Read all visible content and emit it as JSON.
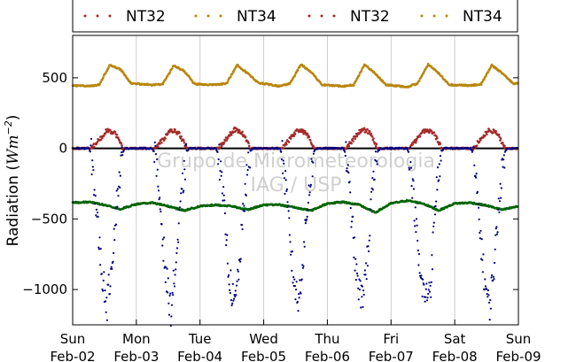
{
  "chart_data": {
    "type": "scatter",
    "title": "",
    "ylabel": "Radiation (Wm⁻²)",
    "ylabel_parts": {
      "prefix": "Radiation (",
      "unit_base": "Wm",
      "unit_exp": "−2",
      "suffix": ")"
    },
    "xlabel": "",
    "xlim": [
      "2014-02-02",
      "2014-02-09"
    ],
    "ylim": [
      -1250,
      800
    ],
    "yticks": [
      500,
      0,
      -500,
      -1000
    ],
    "ytick_labels": [
      "500",
      "0",
      "−500",
      "−1000"
    ],
    "xticks": [
      {
        "day": "Sun",
        "date": "Feb-02"
      },
      {
        "day": "Mon",
        "date": "Feb-03"
      },
      {
        "day": "Tue",
        "date": "Feb-04"
      },
      {
        "day": "Wed",
        "date": "Feb-05"
      },
      {
        "day": "Thu",
        "date": "Feb-06"
      },
      {
        "day": "Fri",
        "date": "Feb-07"
      },
      {
        "day": "Sat",
        "date": "Feb-08"
      },
      {
        "day": "Sun",
        "date": "Feb-09"
      }
    ],
    "grid": "vertical",
    "zero_line": true,
    "legend": {
      "placement": "top",
      "entries": [
        {
          "label": "NT32",
          "color": "#a52a2a"
        },
        {
          "label": "NT34",
          "color": "#b8860b"
        },
        {
          "label": "NT32",
          "color": "#a52a2a"
        },
        {
          "label": "NT34",
          "color": "#b8860b"
        }
      ]
    },
    "watermark": [
      "Grupo de Micrometeorologia",
      "IAG / USP"
    ],
    "series": [
      {
        "color": "#b8860b",
        "points": [
          [
            "2014-02-02T00:00",
            445
          ],
          [
            "2014-02-02T06:00",
            440
          ],
          [
            "2014-02-02T10:00",
            450
          ],
          [
            "2014-02-02T14:00",
            590
          ],
          [
            "2014-02-02T18:00",
            560
          ],
          [
            "2014-02-02T22:00",
            460
          ],
          [
            "2014-02-03T06:00",
            450
          ],
          [
            "2014-02-03T10:00",
            455
          ],
          [
            "2014-02-03T14:00",
            585
          ],
          [
            "2014-02-03T18:00",
            550
          ],
          [
            "2014-02-03T22:00",
            455
          ],
          [
            "2014-02-04T06:00",
            450
          ],
          [
            "2014-02-04T10:00",
            460
          ],
          [
            "2014-02-04T14:00",
            590
          ],
          [
            "2014-02-04T18:00",
            530
          ],
          [
            "2014-02-04T22:00",
            465
          ],
          [
            "2014-02-05T06:00",
            440
          ],
          [
            "2014-02-05T10:00",
            460
          ],
          [
            "2014-02-05T14:00",
            595
          ],
          [
            "2014-02-05T18:00",
            540
          ],
          [
            "2014-02-05T22:00",
            450
          ],
          [
            "2014-02-06T06:00",
            440
          ],
          [
            "2014-02-06T10:00",
            450
          ],
          [
            "2014-02-06T14:00",
            595
          ],
          [
            "2014-02-06T18:00",
            530
          ],
          [
            "2014-02-06T22:00",
            450
          ],
          [
            "2014-02-07T06:00",
            435
          ],
          [
            "2014-02-07T10:00",
            460
          ],
          [
            "2014-02-07T14:00",
            595
          ],
          [
            "2014-02-07T18:00",
            530
          ],
          [
            "2014-02-07T22:00",
            450
          ],
          [
            "2014-02-08T06:00",
            445
          ],
          [
            "2014-02-08T10:00",
            455
          ],
          [
            "2014-02-08T14:00",
            590
          ],
          [
            "2014-02-08T18:00",
            530
          ],
          [
            "2014-02-08T22:00",
            460
          ],
          [
            "2014-02-09T00:00",
            460
          ]
        ]
      },
      {
        "color": "#a52a2a",
        "points": [
          [
            "2014-02-02T00:00",
            0
          ],
          [
            "2014-02-02T07:00",
            0
          ],
          [
            "2014-02-02T10:00",
            60
          ],
          [
            "2014-02-02T13:00",
            130
          ],
          [
            "2014-02-02T16:00",
            110
          ],
          [
            "2014-02-02T19:00",
            0
          ],
          [
            "2014-02-03T07:00",
            0
          ],
          [
            "2014-02-03T10:00",
            60
          ],
          [
            "2014-02-03T13:00",
            130
          ],
          [
            "2014-02-03T16:00",
            110
          ],
          [
            "2014-02-03T19:00",
            0
          ],
          [
            "2014-02-04T07:00",
            0
          ],
          [
            "2014-02-04T10:00",
            70
          ],
          [
            "2014-02-04T13:00",
            135
          ],
          [
            "2014-02-04T16:00",
            110
          ],
          [
            "2014-02-04T19:00",
            0
          ],
          [
            "2014-02-05T07:00",
            0
          ],
          [
            "2014-02-05T10:00",
            70
          ],
          [
            "2014-02-05T13:00",
            130
          ],
          [
            "2014-02-05T16:00",
            110
          ],
          [
            "2014-02-05T19:00",
            0
          ],
          [
            "2014-02-06T07:00",
            0
          ],
          [
            "2014-02-06T10:00",
            70
          ],
          [
            "2014-02-06T13:00",
            135
          ],
          [
            "2014-02-06T16:00",
            115
          ],
          [
            "2014-02-06T19:00",
            0
          ],
          [
            "2014-02-07T07:00",
            0
          ],
          [
            "2014-02-07T10:00",
            70
          ],
          [
            "2014-02-07T13:00",
            135
          ],
          [
            "2014-02-07T16:00",
            115
          ],
          [
            "2014-02-07T19:00",
            0
          ],
          [
            "2014-02-08T07:00",
            0
          ],
          [
            "2014-02-08T10:00",
            70
          ],
          [
            "2014-02-08T13:00",
            130
          ],
          [
            "2014-02-08T16:00",
            110
          ],
          [
            "2014-02-08T19:00",
            0
          ],
          [
            "2014-02-09T00:00",
            0
          ]
        ]
      },
      {
        "color": "#006400",
        "points": [
          [
            "2014-02-02T00:00",
            -385
          ],
          [
            "2014-02-02T06:00",
            -380
          ],
          [
            "2014-02-02T12:00",
            -400
          ],
          [
            "2014-02-02T18:00",
            -430
          ],
          [
            "2014-02-03T00:00",
            -395
          ],
          [
            "2014-02-03T06:00",
            -385
          ],
          [
            "2014-02-03T12:00",
            -410
          ],
          [
            "2014-02-03T18:00",
            -440
          ],
          [
            "2014-02-04T00:00",
            -410
          ],
          [
            "2014-02-04T06:00",
            -400
          ],
          [
            "2014-02-04T12:00",
            -410
          ],
          [
            "2014-02-04T18:00",
            -435
          ],
          [
            "2014-02-05T00:00",
            -400
          ],
          [
            "2014-02-05T06:00",
            -400
          ],
          [
            "2014-02-05T12:00",
            -420
          ],
          [
            "2014-02-05T18:00",
            -440
          ],
          [
            "2014-02-06T00:00",
            -390
          ],
          [
            "2014-02-06T06:00",
            -380
          ],
          [
            "2014-02-06T12:00",
            -400
          ],
          [
            "2014-02-06T18:00",
            -455
          ],
          [
            "2014-02-07T00:00",
            -390
          ],
          [
            "2014-02-07T06:00",
            -370
          ],
          [
            "2014-02-07T12:00",
            -390
          ],
          [
            "2014-02-07T18:00",
            -440
          ],
          [
            "2014-02-08T00:00",
            -390
          ],
          [
            "2014-02-08T06:00",
            -385
          ],
          [
            "2014-02-08T12:00",
            -405
          ],
          [
            "2014-02-08T18:00",
            -435
          ],
          [
            "2014-02-09T00:00",
            -410
          ]
        ]
      },
      {
        "color": "#000080",
        "points": [
          [
            "2014-02-02T00:00",
            0
          ],
          [
            "2014-02-02T06:00",
            0
          ],
          [
            "2014-02-02T07:00",
            -40
          ],
          [
            "2014-02-02T09:00",
            -450
          ],
          [
            "2014-02-02T11:00",
            -880
          ],
          [
            "2014-02-02T13:00",
            -1110
          ],
          [
            "2014-02-02T15:00",
            -750
          ],
          [
            "2014-02-02T17:00",
            -300
          ],
          [
            "2014-02-02T19:00",
            -20
          ],
          [
            "2014-02-02T20:00",
            0
          ],
          [
            "2014-02-03T06:00",
            0
          ],
          [
            "2014-02-03T07:00",
            -40
          ],
          [
            "2014-02-03T09:00",
            -400
          ],
          [
            "2014-02-03T11:00",
            -880
          ],
          [
            "2014-02-03T13:00",
            -1150
          ],
          [
            "2014-02-03T15:00",
            -800
          ],
          [
            "2014-02-03T17:00",
            -350
          ],
          [
            "2014-02-03T19:00",
            -20
          ],
          [
            "2014-02-03T20:00",
            0
          ],
          [
            "2014-02-04T06:00",
            0
          ],
          [
            "2014-02-04T07:00",
            -40
          ],
          [
            "2014-02-04T09:00",
            -420
          ],
          [
            "2014-02-04T11:00",
            -900
          ],
          [
            "2014-02-04T13:00",
            -1130
          ],
          [
            "2014-02-04T15:00",
            -800
          ],
          [
            "2014-02-04T17:00",
            -300
          ],
          [
            "2014-02-04T19:00",
            -20
          ],
          [
            "2014-02-04T20:00",
            0
          ],
          [
            "2014-02-05T06:00",
            0
          ],
          [
            "2014-02-05T07:00",
            -40
          ],
          [
            "2014-02-05T09:00",
            -420
          ],
          [
            "2014-02-05T11:00",
            -880
          ],
          [
            "2014-02-05T13:00",
            -1100
          ],
          [
            "2014-02-05T15:00",
            -750
          ],
          [
            "2014-02-05T17:00",
            -300
          ],
          [
            "2014-02-05T19:00",
            -20
          ],
          [
            "2014-02-05T20:00",
            0
          ],
          [
            "2014-02-06T06:00",
            0
          ],
          [
            "2014-02-06T07:00",
            -40
          ],
          [
            "2014-02-06T09:00",
            -450
          ],
          [
            "2014-02-06T11:00",
            -920
          ],
          [
            "2014-02-06T13:00",
            -1080
          ],
          [
            "2014-02-06T15:00",
            -800
          ],
          [
            "2014-02-06T17:00",
            -300
          ],
          [
            "2014-02-06T19:00",
            -20
          ],
          [
            "2014-02-06T20:00",
            0
          ],
          [
            "2014-02-07T06:00",
            0
          ],
          [
            "2014-02-07T07:00",
            -40
          ],
          [
            "2014-02-07T09:00",
            -450
          ],
          [
            "2014-02-07T11:00",
            -920
          ],
          [
            "2014-02-07T13:00",
            -1060
          ],
          [
            "2014-02-07T15:00",
            -950
          ],
          [
            "2014-02-07T17:00",
            -300
          ],
          [
            "2014-02-07T19:00",
            -20
          ],
          [
            "2014-02-07T20:00",
            0
          ],
          [
            "2014-02-08T06:00",
            0
          ],
          [
            "2014-02-08T07:00",
            -40
          ],
          [
            "2014-02-08T09:00",
            -450
          ],
          [
            "2014-02-08T11:00",
            -900
          ],
          [
            "2014-02-08T13:00",
            -1140
          ],
          [
            "2014-02-08T15:00",
            -800
          ],
          [
            "2014-02-08T17:00",
            -300
          ],
          [
            "2014-02-08T19:00",
            -20
          ],
          [
            "2014-02-08T20:00",
            0
          ],
          [
            "2014-02-09T00:00",
            0
          ]
        ]
      }
    ]
  }
}
